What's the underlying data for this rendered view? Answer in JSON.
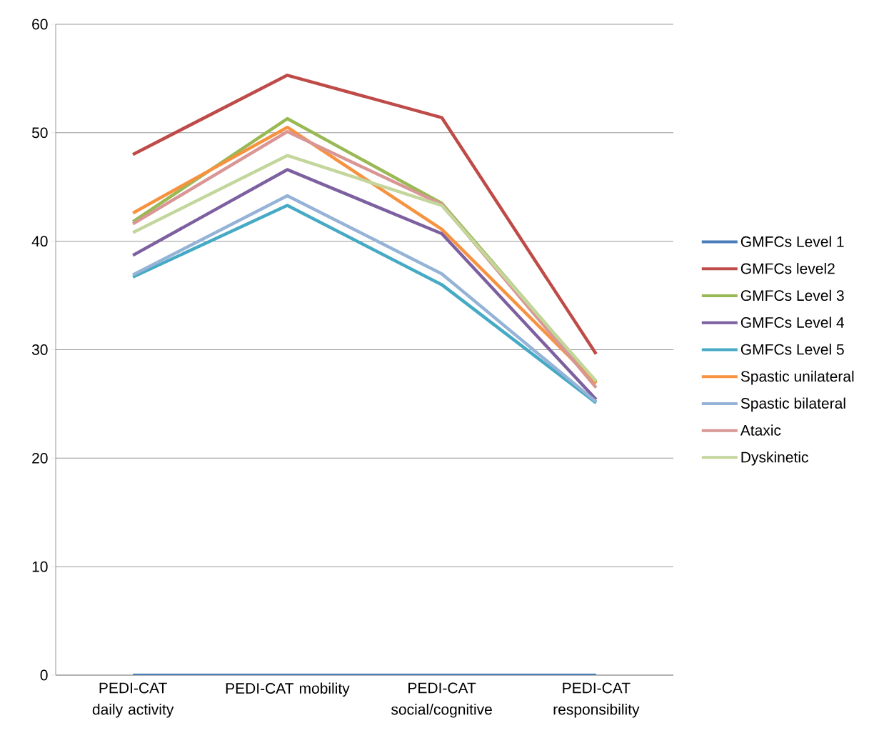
{
  "chart_data": {
    "type": "line",
    "categories": [
      "PEDI-CAT daily activity",
      "PEDI-CAT mobility",
      "PEDI-CAT social/cognitive",
      "PEDI-CAT responsibility"
    ],
    "ylim": [
      0,
      60
    ],
    "yticks": [
      0,
      10,
      20,
      30,
      40,
      50,
      60
    ],
    "grid": "y",
    "legend": "right",
    "marker": "none",
    "series": [
      {
        "name": "GMFCs Level 1",
        "color": "#4a7ebb",
        "values": [
          0,
          0,
          0,
          0
        ]
      },
      {
        "name": "GMFCs level2",
        "color": "#be4b48",
        "values": [
          48.0,
          55.3,
          51.4,
          29.6
        ]
      },
      {
        "name": "GMFCs Level 3",
        "color": "#98b954",
        "values": [
          41.8,
          51.3,
          43.5,
          27.0
        ]
      },
      {
        "name": "GMFCs Level 4",
        "color": "#7d60a0",
        "values": [
          38.7,
          46.6,
          40.7,
          25.4
        ]
      },
      {
        "name": "GMFCs Level 5",
        "color": "#46aac5",
        "values": [
          36.7,
          43.3,
          36.0,
          25.1
        ]
      },
      {
        "name": "Spastic unilateral",
        "color": "#f69240",
        "values": [
          42.6,
          50.5,
          41.1,
          26.9
        ]
      },
      {
        "name": "Spastic bilateral",
        "color": "#95b3d7",
        "values": [
          36.9,
          44.2,
          37.0,
          25.2
        ]
      },
      {
        "name": "Ataxic",
        "color": "#d99694",
        "values": [
          41.6,
          50.1,
          43.4,
          26.5
        ]
      },
      {
        "name": "Dyskinetic",
        "color": "#c3d69b",
        "values": [
          40.8,
          47.9,
          43.3,
          27.1
        ]
      }
    ]
  }
}
